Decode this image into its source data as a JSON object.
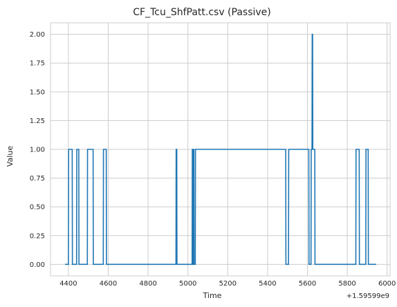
{
  "chart_data": {
    "type": "line",
    "title": "CF_Tcu_ShfPatt.csv (Passive)",
    "xlabel": "Time",
    "ylabel": "Value",
    "x_offset_label": "+1.59599e9",
    "xlim": [
      4310,
      6015
    ],
    "ylim": [
      -0.1,
      2.1
    ],
    "x_ticks": [
      4400,
      4600,
      4800,
      5000,
      5200,
      5400,
      5600,
      5800,
      6000
    ],
    "x_tick_labels": [
      "4400",
      "4600",
      "4800",
      "5000",
      "5200",
      "5400",
      "5600",
      "5800",
      "6000"
    ],
    "y_ticks": [
      0.0,
      0.25,
      0.5,
      0.75,
      1.0,
      1.25,
      1.5,
      1.75,
      2.0
    ],
    "y_tick_labels": [
      "0.00",
      "0.25",
      "0.50",
      "0.75",
      "1.00",
      "1.25",
      "1.50",
      "1.75",
      "2.00"
    ],
    "grid": true,
    "line_color": "#1f77b4",
    "series": [
      {
        "step": true,
        "x": [
          4383,
          4400,
          4401,
          4419,
          4420,
          4441,
          4442,
          4452,
          4453,
          4495,
          4496,
          4524,
          4525,
          4575,
          4576,
          4590,
          4591,
          4940,
          4941,
          4944,
          4945,
          5021,
          5022,
          5024,
          5025,
          5027,
          5028,
          5030,
          5031,
          5037,
          5038,
          5491,
          5492,
          5505,
          5506,
          5607,
          5608,
          5618,
          5619,
          5623,
          5624,
          5626,
          5627,
          5637,
          5638,
          5843,
          5844,
          5860,
          5861,
          5893,
          5894,
          5905,
          5906,
          5945
        ],
        "values": [
          0,
          0,
          1,
          1,
          0,
          0,
          1,
          1,
          0,
          0,
          1,
          1,
          0,
          0,
          1,
          1,
          0,
          0,
          1,
          1,
          0,
          0,
          1,
          1,
          0,
          0,
          1,
          1,
          0,
          0,
          1,
          1,
          0,
          0,
          1,
          1,
          0,
          0,
          1,
          1,
          2,
          2,
          1,
          1,
          0,
          0,
          1,
          1,
          0,
          0,
          1,
          1,
          0,
          0
        ]
      }
    ]
  }
}
